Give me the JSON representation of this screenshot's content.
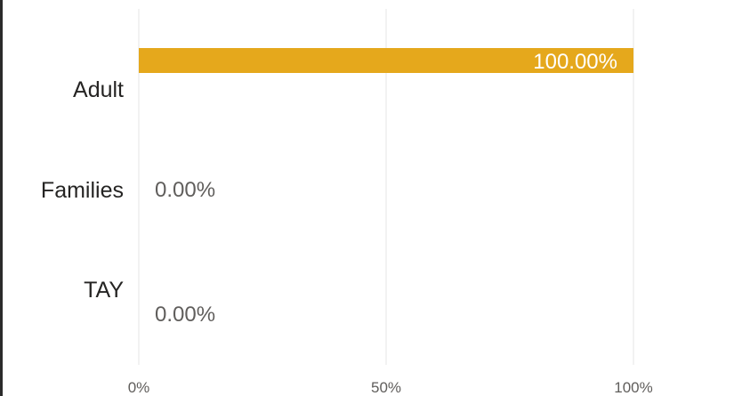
{
  "chart_data": {
    "type": "bar",
    "orientation": "horizontal",
    "categories": [
      "Adult",
      "Families",
      "TAY"
    ],
    "values": [
      100.0,
      0.0,
      0.0
    ],
    "data_labels": [
      "100.00%",
      "0.00%",
      "0.00%"
    ],
    "x_ticks": [
      "0%",
      "50%",
      "100%"
    ],
    "xlim": [
      0,
      100
    ],
    "xlabel": "",
    "ylabel": "",
    "title": "",
    "grid": true,
    "legend": "none",
    "bar_color": "#E5A81C",
    "inside_label_color": "#ffffff",
    "outside_label_color": "#605e5c"
  }
}
